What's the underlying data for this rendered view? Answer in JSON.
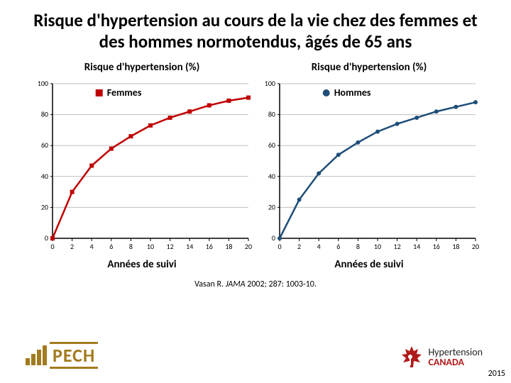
{
  "title": "Risque d'hypertension au cours de la vie chez des femmes et des hommes normotendus, âgés de 65 ans",
  "chart_femmes": {
    "type": "line",
    "y_title": "Risque d'hypertension (%)",
    "x_title": "Années de suivi",
    "legend_label": "Femmes",
    "series_color": "#c00000",
    "marker_style": "square",
    "marker_size": 6,
    "line_width": 2.5,
    "grid_color": "#bfbfbf",
    "axis_color": "#000000",
    "background_color": "#ffffff",
    "xlim": [
      0,
      20
    ],
    "ylim": [
      0,
      100
    ],
    "xtick_step": 2,
    "ytick_step": 20,
    "tick_font_size": 10,
    "points_x": [
      0,
      2,
      4,
      6,
      8,
      10,
      12,
      14,
      16,
      18,
      20
    ],
    "points_y": [
      0,
      30,
      47,
      58,
      66,
      73,
      78,
      82,
      86,
      89,
      91
    ]
  },
  "chart_hommes": {
    "type": "line",
    "y_title": "Risque d'hypertension (%)",
    "x_title": "Années de suivi",
    "legend_label": "Hommes",
    "series_color": "#1f4e79",
    "marker_style": "circle",
    "marker_size": 6,
    "line_width": 2.5,
    "grid_color": "#bfbfbf",
    "axis_color": "#000000",
    "background_color": "#ffffff",
    "xlim": [
      0,
      20
    ],
    "ylim": [
      0,
      100
    ],
    "xtick_step": 2,
    "ytick_step": 20,
    "tick_font_size": 10,
    "points_x": [
      0,
      2,
      4,
      6,
      8,
      10,
      12,
      14,
      16,
      18,
      20
    ],
    "points_y": [
      0,
      25,
      42,
      54,
      62,
      69,
      74,
      78,
      82,
      85,
      88
    ]
  },
  "citation": {
    "author": "Vasan R.",
    "journal": "JAMA",
    "rest": " 2002; 287: 1003-10."
  },
  "year": "2015",
  "logo_pech": "PECH",
  "logo_hc_line1": "Hypertension",
  "logo_hc_line2": "CANADA",
  "logo_hc_leaf_color": "#b11a1a",
  "logo_pech_color": "#a37b1f"
}
